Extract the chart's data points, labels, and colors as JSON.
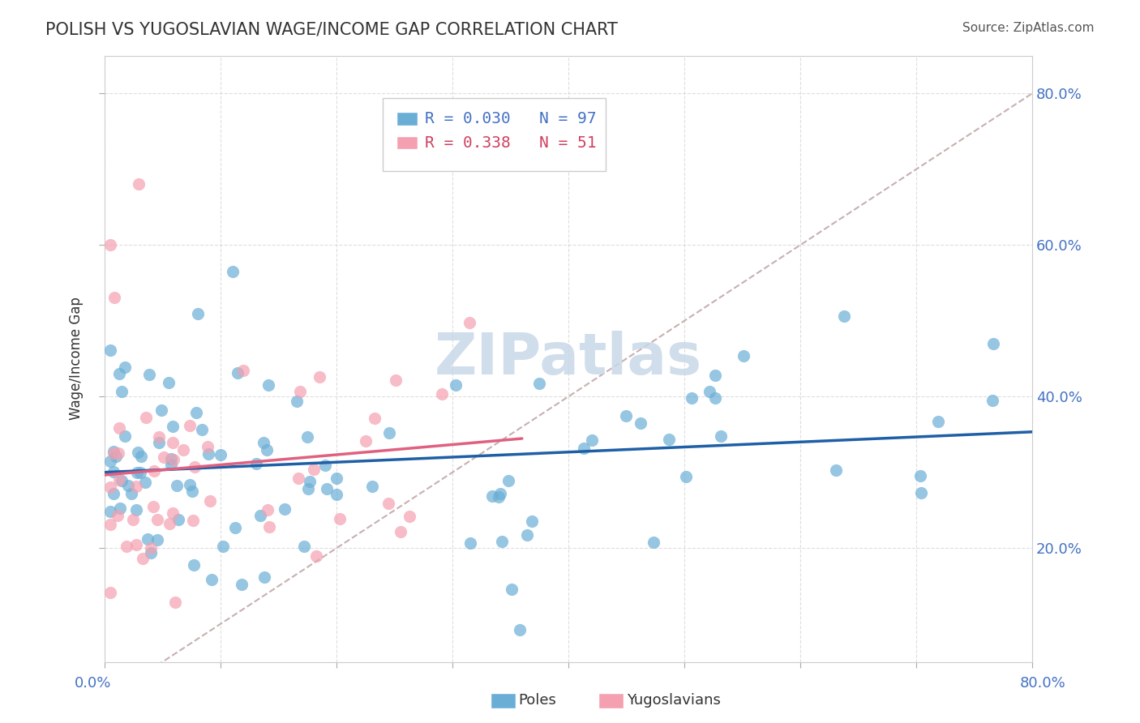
{
  "title": "POLISH VS YUGOSLAVIAN WAGE/INCOME GAP CORRELATION CHART",
  "source": "Source: ZipAtlas.com",
  "ylabel": "Wage/Income Gap",
  "xlim": [
    0.0,
    0.8
  ],
  "ylim": [
    0.05,
    0.85
  ],
  "R_blue": 0.03,
  "N_blue": 97,
  "R_pink": 0.338,
  "N_pink": 51,
  "blue_color": "#6aaed6",
  "pink_color": "#f4a0b0",
  "blue_line_color": "#1f5fa6",
  "pink_line_color": "#e06080",
  "diagonal_color": "#c8b0b0",
  "background_color": "#ffffff",
  "watermark": "ZIPatlas",
  "watermark_color": "#c8d8e8"
}
